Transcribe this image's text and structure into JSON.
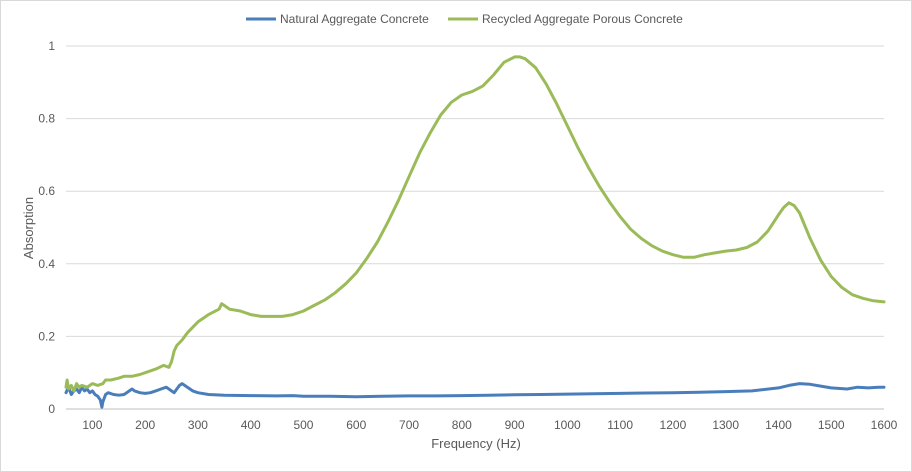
{
  "chart_data": {
    "type": "line",
    "title": "",
    "xlabel": "Frequency (Hz)",
    "ylabel": "Absorption",
    "xlim": [
      50,
      1600
    ],
    "ylim": [
      0,
      1
    ],
    "grid": "horizontal",
    "legend_placement": "top-center",
    "x_ticks": [
      "100",
      "200",
      "300",
      "400",
      "500",
      "600",
      "700",
      "800",
      "900",
      "1000",
      "1100",
      "1200",
      "1300",
      "1400",
      "1500",
      "1600"
    ],
    "y_ticks": [
      "0",
      "0.2",
      "0.4",
      "0.6",
      "0.8",
      "1"
    ],
    "series": [
      {
        "name": "Natural Aggregate Concrete",
        "color": "#4A7EBB",
        "points": [
          [
            50,
            0.045
          ],
          [
            55,
            0.06
          ],
          [
            60,
            0.04
          ],
          [
            65,
            0.05
          ],
          [
            70,
            0.055
          ],
          [
            75,
            0.045
          ],
          [
            80,
            0.06
          ],
          [
            85,
            0.05
          ],
          [
            90,
            0.055
          ],
          [
            95,
            0.045
          ],
          [
            100,
            0.05
          ],
          [
            105,
            0.04
          ],
          [
            110,
            0.035
          ],
          [
            115,
            0.025
          ],
          [
            118,
            0.005
          ],
          [
            120,
            0.02
          ],
          [
            125,
            0.04
          ],
          [
            130,
            0.045
          ],
          [
            140,
            0.04
          ],
          [
            150,
            0.038
          ],
          [
            160,
            0.04
          ],
          [
            170,
            0.05
          ],
          [
            175,
            0.055
          ],
          [
            180,
            0.05
          ],
          [
            190,
            0.045
          ],
          [
            200,
            0.043
          ],
          [
            210,
            0.045
          ],
          [
            220,
            0.05
          ],
          [
            230,
            0.055
          ],
          [
            240,
            0.06
          ],
          [
            250,
            0.05
          ],
          [
            255,
            0.045
          ],
          [
            260,
            0.055
          ],
          [
            265,
            0.065
          ],
          [
            270,
            0.07
          ],
          [
            280,
            0.06
          ],
          [
            290,
            0.05
          ],
          [
            300,
            0.045
          ],
          [
            320,
            0.04
          ],
          [
            350,
            0.038
          ],
          [
            400,
            0.037
          ],
          [
            450,
            0.036
          ],
          [
            480,
            0.037
          ],
          [
            500,
            0.035
          ],
          [
            550,
            0.035
          ],
          [
            600,
            0.034
          ],
          [
            650,
            0.035
          ],
          [
            700,
            0.036
          ],
          [
            750,
            0.036
          ],
          [
            800,
            0.037
          ],
          [
            850,
            0.038
          ],
          [
            900,
            0.039
          ],
          [
            950,
            0.04
          ],
          [
            1000,
            0.041
          ],
          [
            1050,
            0.042
          ],
          [
            1100,
            0.043
          ],
          [
            1150,
            0.044
          ],
          [
            1200,
            0.045
          ],
          [
            1250,
            0.046
          ],
          [
            1300,
            0.048
          ],
          [
            1350,
            0.05
          ],
          [
            1400,
            0.058
          ],
          [
            1420,
            0.065
          ],
          [
            1440,
            0.07
          ],
          [
            1460,
            0.068
          ],
          [
            1480,
            0.063
          ],
          [
            1500,
            0.058
          ],
          [
            1530,
            0.055
          ],
          [
            1550,
            0.06
          ],
          [
            1570,
            0.058
          ],
          [
            1590,
            0.06
          ],
          [
            1600,
            0.06
          ]
        ]
      },
      {
        "name": "Recycled Aggregate Porous Concrete",
        "color": "#9BBB59",
        "points": [
          [
            50,
            0.06
          ],
          [
            52,
            0.08
          ],
          [
            55,
            0.055
          ],
          [
            60,
            0.065
          ],
          [
            65,
            0.05
          ],
          [
            70,
            0.07
          ],
          [
            75,
            0.06
          ],
          [
            80,
            0.065
          ],
          [
            90,
            0.06
          ],
          [
            100,
            0.07
          ],
          [
            110,
            0.065
          ],
          [
            120,
            0.07
          ],
          [
            125,
            0.08
          ],
          [
            135,
            0.08
          ],
          [
            150,
            0.085
          ],
          [
            160,
            0.09
          ],
          [
            175,
            0.09
          ],
          [
            190,
            0.095
          ],
          [
            200,
            0.1
          ],
          [
            220,
            0.11
          ],
          [
            235,
            0.12
          ],
          [
            245,
            0.115
          ],
          [
            250,
            0.13
          ],
          [
            255,
            0.16
          ],
          [
            260,
            0.175
          ],
          [
            270,
            0.19
          ],
          [
            280,
            0.21
          ],
          [
            290,
            0.225
          ],
          [
            300,
            0.24
          ],
          [
            320,
            0.26
          ],
          [
            340,
            0.275
          ],
          [
            345,
            0.29
          ],
          [
            350,
            0.285
          ],
          [
            360,
            0.275
          ],
          [
            380,
            0.27
          ],
          [
            400,
            0.26
          ],
          [
            420,
            0.255
          ],
          [
            440,
            0.255
          ],
          [
            460,
            0.255
          ],
          [
            480,
            0.26
          ],
          [
            500,
            0.27
          ],
          [
            520,
            0.285
          ],
          [
            540,
            0.3
          ],
          [
            560,
            0.32
          ],
          [
            580,
            0.345
          ],
          [
            600,
            0.375
          ],
          [
            620,
            0.415
          ],
          [
            640,
            0.46
          ],
          [
            660,
            0.515
          ],
          [
            680,
            0.575
          ],
          [
            700,
            0.64
          ],
          [
            720,
            0.705
          ],
          [
            740,
            0.76
          ],
          [
            760,
            0.81
          ],
          [
            780,
            0.845
          ],
          [
            800,
            0.865
          ],
          [
            820,
            0.875
          ],
          [
            840,
            0.89
          ],
          [
            860,
            0.92
          ],
          [
            880,
            0.955
          ],
          [
            900,
            0.97
          ],
          [
            910,
            0.97
          ],
          [
            920,
            0.965
          ],
          [
            940,
            0.94
          ],
          [
            960,
            0.895
          ],
          [
            980,
            0.84
          ],
          [
            1000,
            0.78
          ],
          [
            1020,
            0.72
          ],
          [
            1040,
            0.665
          ],
          [
            1060,
            0.615
          ],
          [
            1080,
            0.57
          ],
          [
            1100,
            0.53
          ],
          [
            1120,
            0.495
          ],
          [
            1140,
            0.47
          ],
          [
            1160,
            0.45
          ],
          [
            1180,
            0.435
          ],
          [
            1200,
            0.425
          ],
          [
            1220,
            0.418
          ],
          [
            1240,
            0.418
          ],
          [
            1260,
            0.425
          ],
          [
            1280,
            0.43
          ],
          [
            1300,
            0.435
          ],
          [
            1320,
            0.438
          ],
          [
            1340,
            0.445
          ],
          [
            1360,
            0.46
          ],
          [
            1380,
            0.49
          ],
          [
            1400,
            0.535
          ],
          [
            1410,
            0.555
          ],
          [
            1420,
            0.568
          ],
          [
            1430,
            0.56
          ],
          [
            1440,
            0.54
          ],
          [
            1460,
            0.47
          ],
          [
            1480,
            0.41
          ],
          [
            1500,
            0.365
          ],
          [
            1520,
            0.335
          ],
          [
            1540,
            0.315
          ],
          [
            1560,
            0.305
          ],
          [
            1580,
            0.298
          ],
          [
            1600,
            0.295
          ]
        ]
      }
    ]
  }
}
